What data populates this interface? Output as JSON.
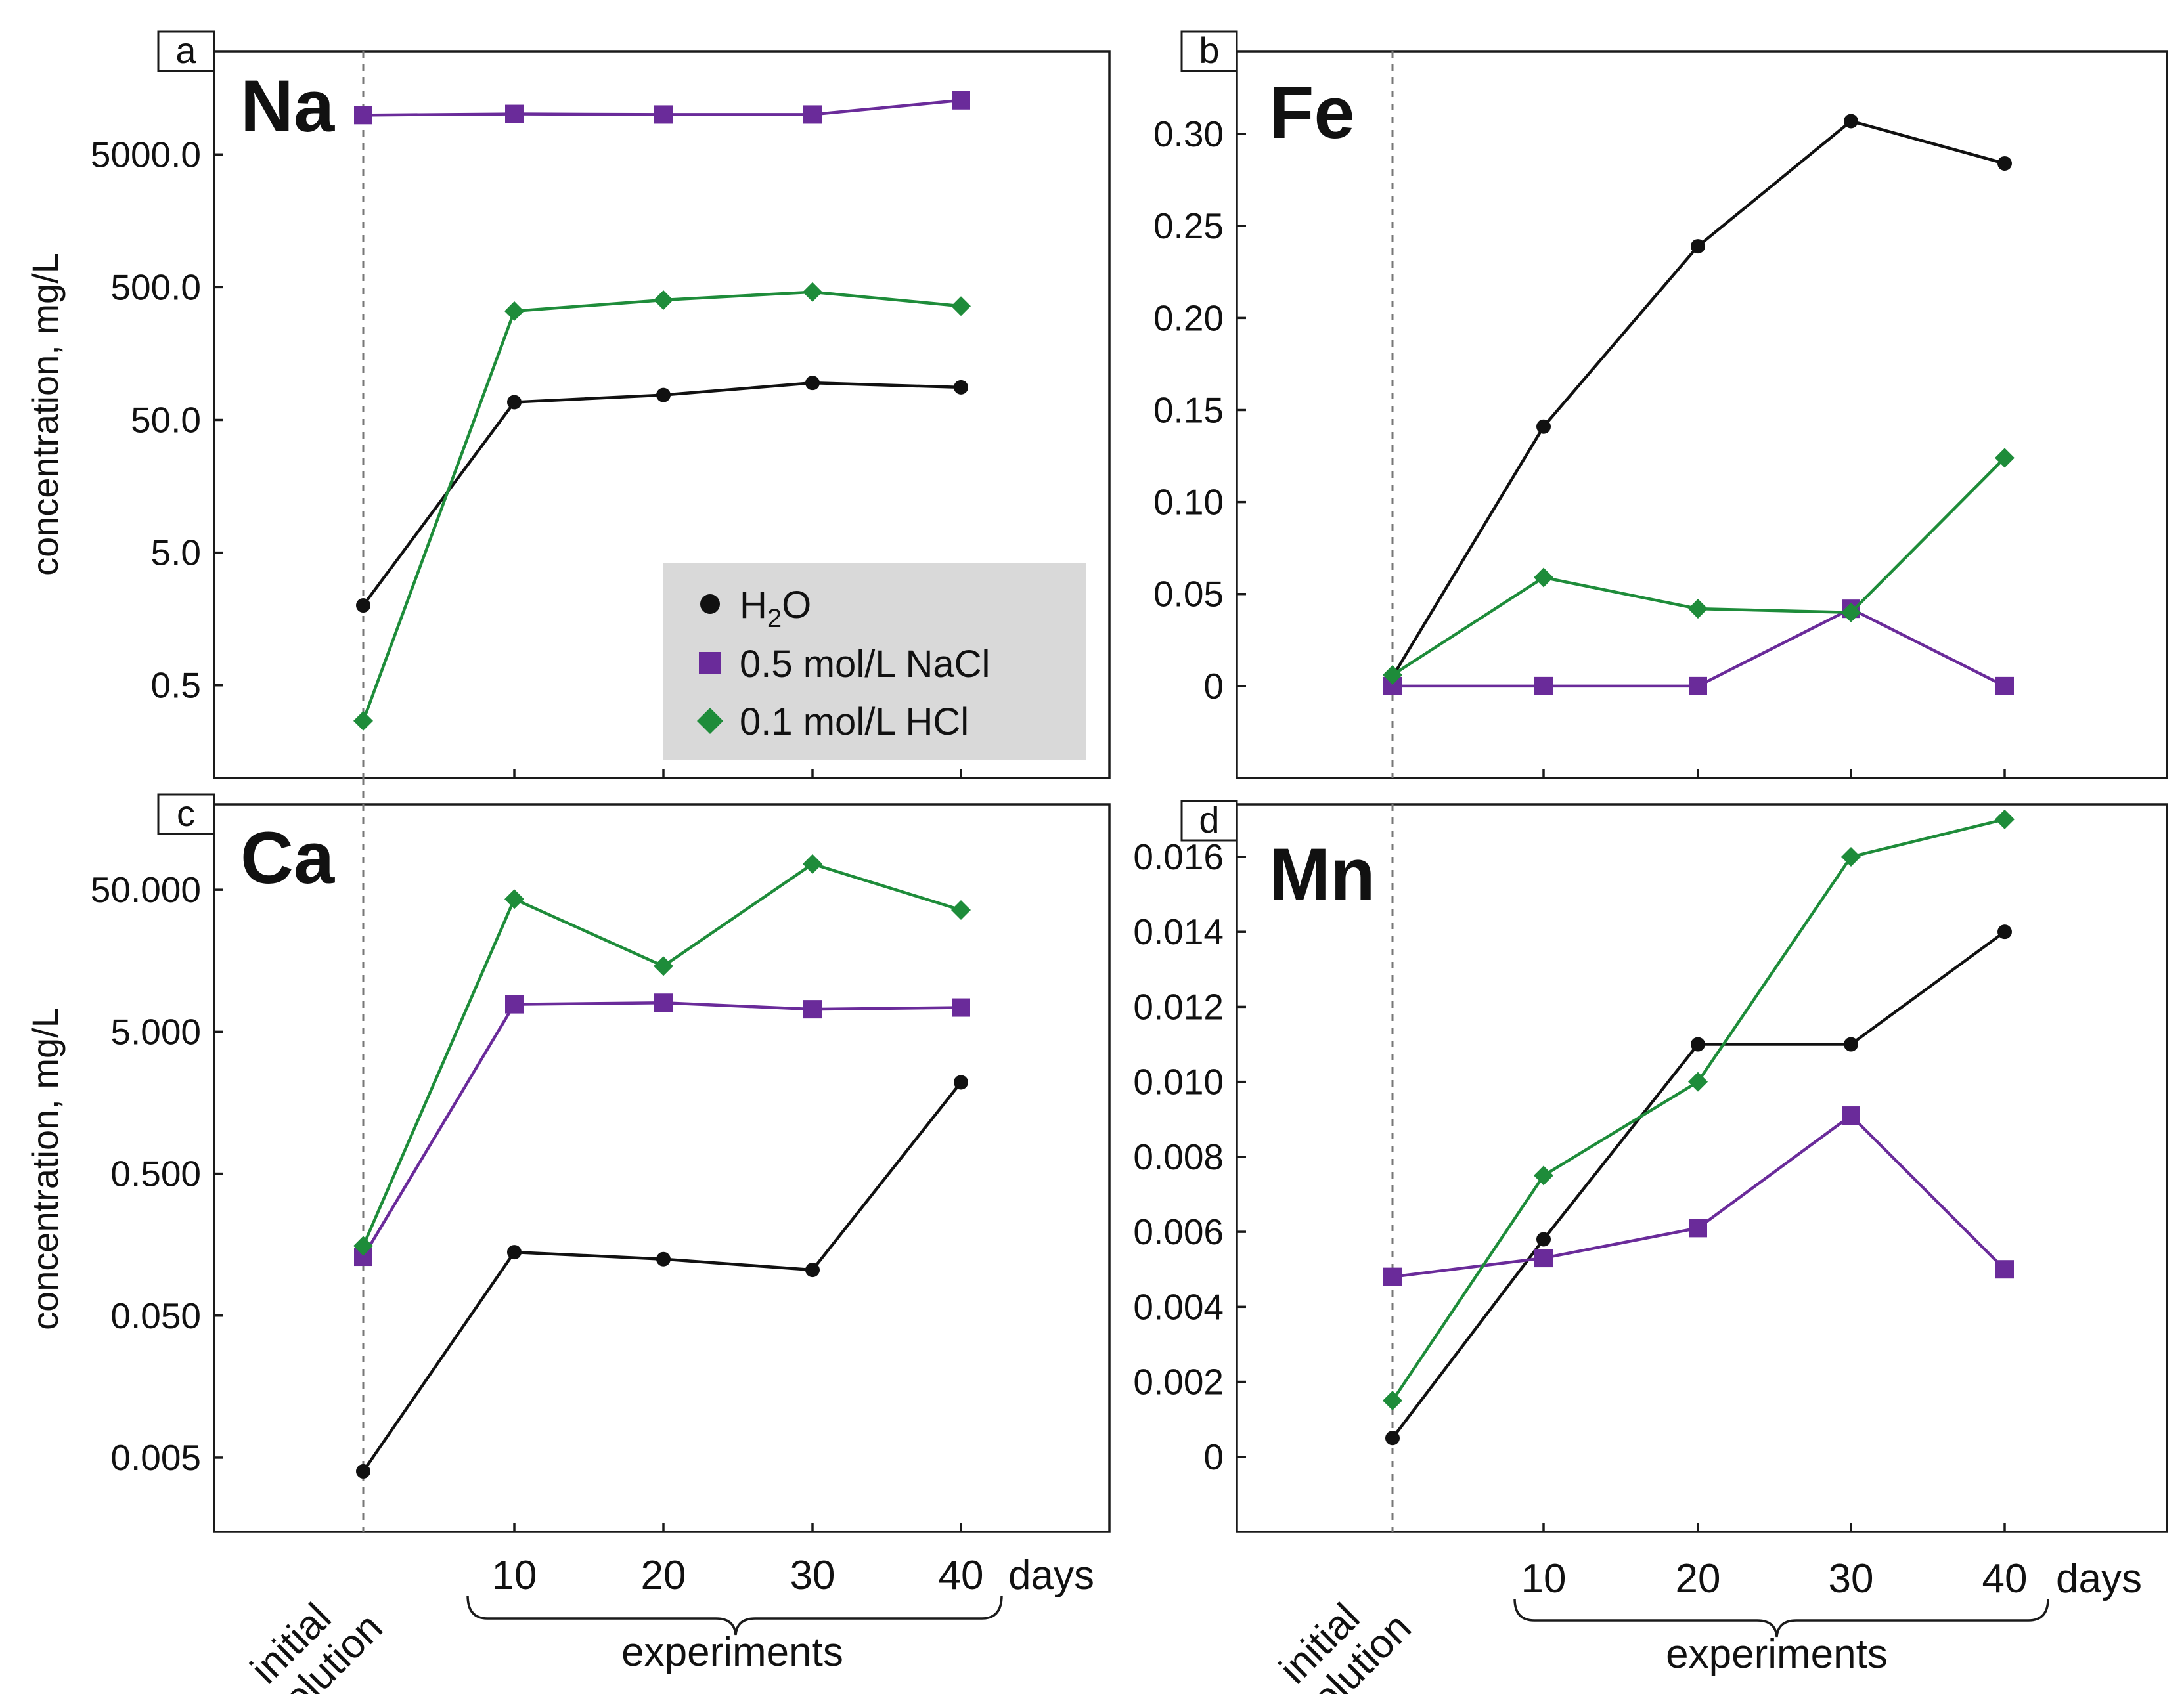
{
  "chart_data": [
    {
      "panel": "a",
      "element": "Na",
      "type": "line",
      "y_scale": "log",
      "ylabel": "concentration, mg/L",
      "categories": [
        "initial solution",
        "10",
        "20",
        "30",
        "40"
      ],
      "y_ticks": [
        0.5,
        5,
        50,
        500,
        5000
      ],
      "y_tick_labels": [
        "0.5",
        "5.0",
        "50.0",
        "500.0",
        "5000.0"
      ],
      "ylim": [
        0.1,
        30000
      ],
      "series": [
        {
          "name": "H2O",
          "values": [
            2.0,
            68,
            77,
            95,
            88
          ]
        },
        {
          "name": "0.5 mol/L NaCl",
          "values": [
            9900,
            10100,
            10000,
            10000,
            12800
          ]
        },
        {
          "name": "0.1 mol/L HCl",
          "values": [
            0.27,
            330,
            400,
            460,
            360
          ]
        }
      ]
    },
    {
      "panel": "b",
      "element": "Fe",
      "type": "line",
      "y_scale": "linear",
      "ylabel": "",
      "categories": [
        "initial solution",
        "10",
        "20",
        "30",
        "40"
      ],
      "y_ticks": [
        0,
        0.05,
        0.1,
        0.15,
        0.2,
        0.25,
        0.3
      ],
      "y_tick_labels": [
        "0",
        "0.05",
        "0.10",
        "0.15",
        "0.20",
        "0.25",
        "0.30"
      ],
      "ylim": [
        -0.05,
        0.345
      ],
      "series": [
        {
          "name": "H2O",
          "values": [
            0.005,
            0.141,
            0.239,
            0.307,
            0.284
          ]
        },
        {
          "name": "0.5 mol/L NaCl",
          "values": [
            0.0,
            0.0,
            0.0,
            0.042,
            0.0
          ]
        },
        {
          "name": "0.1 mol/L HCl",
          "values": [
            0.006,
            0.059,
            0.042,
            0.04,
            0.124
          ]
        }
      ]
    },
    {
      "panel": "c",
      "element": "Ca",
      "type": "line",
      "y_scale": "log",
      "ylabel": "concentration, mg/L",
      "categories": [
        "initial solution",
        "10",
        "20",
        "30",
        "40"
      ],
      "y_ticks": [
        0.005,
        0.05,
        0.5,
        5,
        50
      ],
      "y_tick_labels": [
        "0.005",
        "0.050",
        "0.500",
        "5.000",
        "50.000"
      ],
      "ylim": [
        0.0015,
        200
      ],
      "series": [
        {
          "name": "H2O",
          "values": [
            0.004,
            0.14,
            0.125,
            0.105,
            2.2
          ]
        },
        {
          "name": "0.5 mol/L NaCl",
          "values": [
            0.13,
            7.8,
            8.0,
            7.2,
            7.4
          ]
        },
        {
          "name": "0.1 mol/L HCl",
          "values": [
            0.155,
            43,
            14.5,
            76,
            36
          ]
        }
      ]
    },
    {
      "panel": "d",
      "element": "Mn",
      "type": "line",
      "y_scale": "linear",
      "ylabel": "",
      "categories": [
        "initial solution",
        "10",
        "20",
        "30",
        "40"
      ],
      "y_ticks": [
        0,
        0.002,
        0.004,
        0.006,
        0.008,
        0.01,
        0.012,
        0.014,
        0.016
      ],
      "y_tick_labels": [
        "0",
        "0.002",
        "0.004",
        "0.006",
        "0.008",
        "0.010",
        "0.012",
        "0.014",
        "0.016"
      ],
      "ylim": [
        -0.002,
        0.0174
      ],
      "series": [
        {
          "name": "H2O",
          "values": [
            0.0005,
            0.0058,
            0.011,
            0.011,
            0.014
          ]
        },
        {
          "name": "0.5 mol/L NaCl",
          "values": [
            0.0048,
            0.0053,
            0.0061,
            0.0091,
            0.005
          ]
        },
        {
          "name": "0.1 mol/L HCl",
          "values": [
            0.0015,
            0.0075,
            0.01,
            0.016,
            0.017
          ]
        }
      ]
    }
  ],
  "legend": {
    "items": [
      {
        "label_main": "H",
        "label_sub": "2",
        "label_tail": "O",
        "marker": "circle",
        "color": "#111111"
      },
      {
        "label_main": "0.5 mol/L NaCl",
        "label_sub": "",
        "label_tail": "",
        "marker": "square",
        "color": "#6a2b9a"
      },
      {
        "label_main": "0.1 mol/L HCl",
        "label_sub": "",
        "label_tail": "",
        "marker": "diamond",
        "color": "#1e8c3a"
      }
    ]
  },
  "colors": {
    "h2o": "#111111",
    "nacl": "#6a2b9a",
    "hcl": "#1e8c3a",
    "legend_bg": "#d9d9d9"
  },
  "x_axis": {
    "initial_line1": "initial",
    "initial_line2": "solution",
    "days_label": "days",
    "experiments_label": "experiments",
    "day_labels": [
      "10",
      "20",
      "30",
      "40"
    ]
  }
}
